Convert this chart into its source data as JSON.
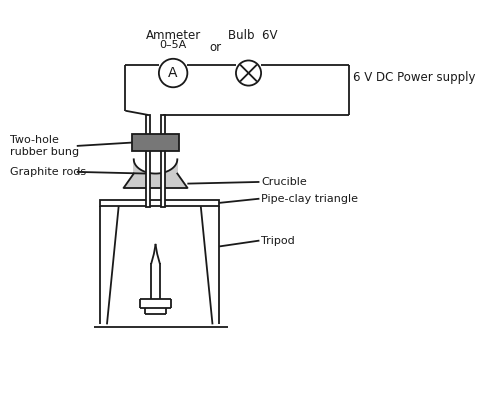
{
  "bg_color": "#ffffff",
  "line_color": "#1a1a1a",
  "dark_gray": "#777777",
  "light_gray": "#cccccc",
  "labels": {
    "ammeter_title": "Ammeter",
    "ammeter_range": "0–5A",
    "bulb_title": "Bulb  6V",
    "or_text": "or",
    "power_supply": "6 V DC Power supply",
    "two_hole": "Two-hole\nrubber bung",
    "graphite": "Graphite rods",
    "crucible": "Crucible",
    "pipe_clay": "Pipe-clay triangle",
    "tripod": "Tripod"
  },
  "fig_width": 4.8,
  "fig_height": 3.99,
  "dpi": 100
}
